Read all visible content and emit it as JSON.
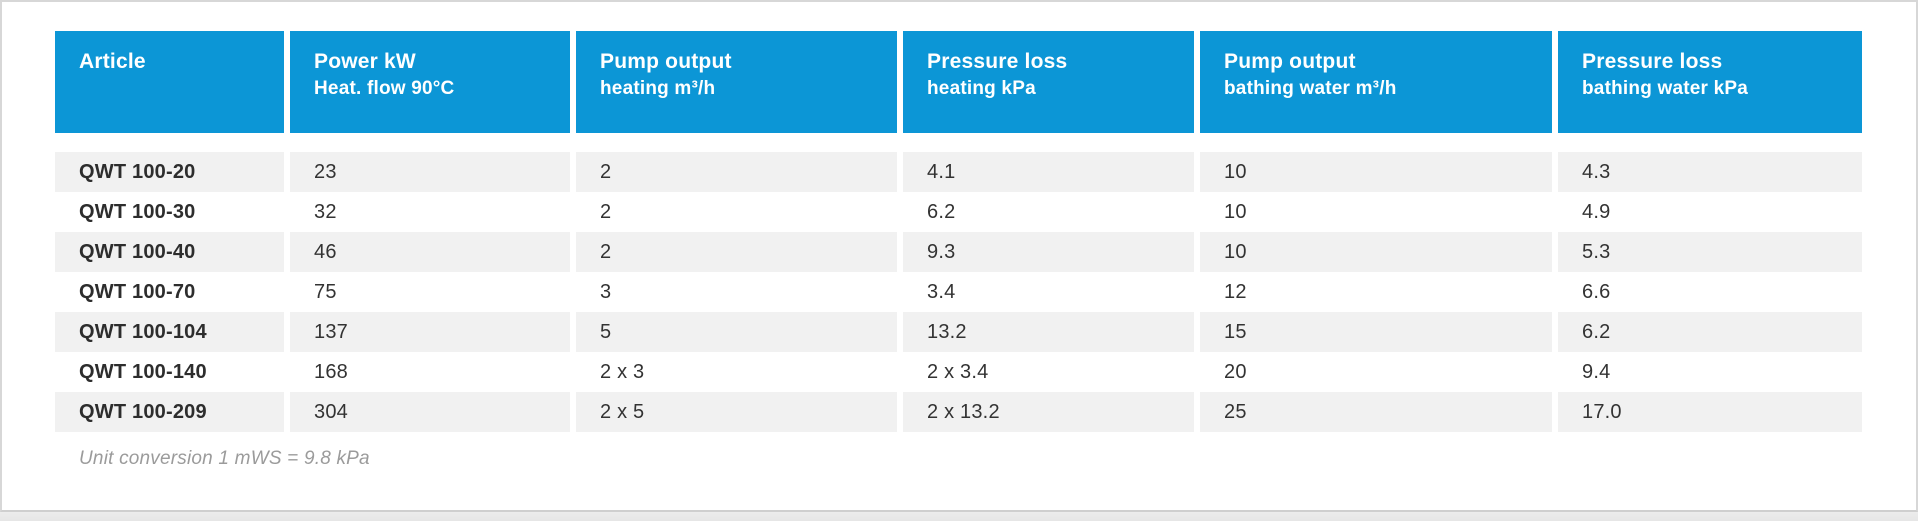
{
  "colors": {
    "header_bg": "#0c96d6",
    "header_text": "#ffffff",
    "row_alt_bg": "#f1f1f1",
    "row_text": "#333333",
    "footnote_text": "#9b9b9b",
    "card_border": "#d7d7d7",
    "page_strip_bg": "#e9e9e9"
  },
  "table": {
    "columns": [
      {
        "title": "Article",
        "subtitle": ""
      },
      {
        "title": "Power kW",
        "subtitle": "Heat. flow 90°C"
      },
      {
        "title": "Pump output",
        "subtitle": "heating m³/h"
      },
      {
        "title": "Pressure loss",
        "subtitle": "heating kPa"
      },
      {
        "title": "Pump output",
        "subtitle": "bathing water m³/h"
      },
      {
        "title": "Pressure loss",
        "subtitle": "bathing water kPa"
      }
    ],
    "rows": [
      [
        "QWT 100-20",
        "23",
        "2",
        "4.1",
        "10",
        "4.3"
      ],
      [
        "QWT 100-30",
        "32",
        "2",
        "6.2",
        "10",
        "4.9"
      ],
      [
        "QWT 100-40",
        "46",
        "2",
        "9.3",
        "10",
        "5.3"
      ],
      [
        "QWT 100-70",
        "75",
        "3",
        "3.4",
        "12",
        "6.6"
      ],
      [
        "QWT 100-104",
        "137",
        "5",
        "13.2",
        "15",
        "6.2"
      ],
      [
        "QWT 100-140",
        "168",
        "2 x 3",
        "2 x 3.4",
        "20",
        "9.4"
      ],
      [
        "QWT 100-209",
        "304",
        "2 x 5",
        "2 x 13.2",
        "25",
        "17.0"
      ]
    ],
    "footnote": "Unit conversion 1 mWS = 9.8 kPa"
  }
}
